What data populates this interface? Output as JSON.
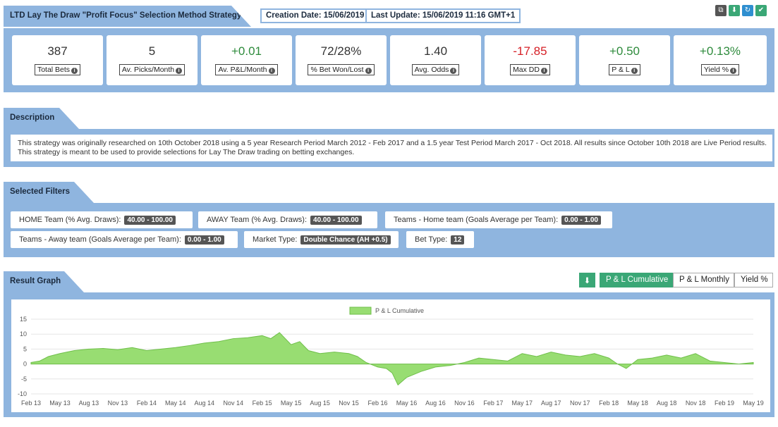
{
  "header": {
    "title": "LTD Lay The Draw \"Profit Focus\" Selection Method Strategy",
    "creation_date": "Creation Date: 15/06/2019",
    "last_update": "Last Update: 15/06/2019 11:16 GMT+1",
    "icons": [
      "copy-icon",
      "download-icon",
      "refresh-icon",
      "follow-check-icon"
    ]
  },
  "stats": [
    {
      "value": "387",
      "label": "Total Bets",
      "tone": "neutral"
    },
    {
      "value": "5",
      "label": "Av. Picks/Month",
      "tone": "neutral"
    },
    {
      "value": "+0.01",
      "label": "Av. P&L/Month",
      "tone": "green"
    },
    {
      "value": "72/28%",
      "label": "% Bet Won/Lost",
      "tone": "neutral"
    },
    {
      "value": "1.40",
      "label": "Avg. Odds",
      "tone": "neutral"
    },
    {
      "value": "-17.85",
      "label": "Max DD",
      "tone": "red"
    },
    {
      "value": "+0.50",
      "label": "P & L",
      "tone": "green"
    },
    {
      "value": "+0.13%",
      "label": "Yield %",
      "tone": "green"
    }
  ],
  "description": {
    "title": "Description",
    "text": "This strategy was originally researched on 10th October 2018 using a 5 year Research Period March 2012 - Feb 2017 and a 1.5 year Test Period March 2017 - Oct 2018. All results since October 10th 2018 are Live Period results. This strategy is meant to be used to provide selections for Lay The Draw trading on betting exchanges."
  },
  "filters": {
    "title": "Selected Filters",
    "items": [
      {
        "label": "HOME Team (% Avg. Draws):",
        "value": "40.00 - 100.00"
      },
      {
        "label": "AWAY Team (% Avg. Draws):",
        "value": "40.00 - 100.00"
      },
      {
        "label": "Teams - Home team (Goals Average per Team):",
        "value": "0.00 - 1.00"
      },
      {
        "label": "Teams - Away team (Goals Average per Team):",
        "value": "0.00 - 1.00"
      },
      {
        "label": "Market Type:",
        "value": "Double Chance (AH +0.5)"
      },
      {
        "label": "Bet Type:",
        "value": "12"
      }
    ]
  },
  "graph": {
    "title": "Result Graph",
    "buttons": [
      "P & L Cumulative",
      "P & L Monthly",
      "Yield %"
    ],
    "active_button": "P & L Cumulative"
  },
  "chart_data": {
    "type": "area",
    "legend": "P & L Cumulative",
    "legend_position": "top-center",
    "color": "#98dd72",
    "grid": true,
    "ylim": [
      -10,
      15
    ],
    "yticks": [
      -10,
      -5,
      0,
      5,
      10,
      15
    ],
    "xticks": [
      "Feb 13",
      "May 13",
      "Aug 13",
      "Nov 13",
      "Feb 14",
      "May 14",
      "Aug 14",
      "Nov 14",
      "Feb 15",
      "May 15",
      "Aug 15",
      "Nov 15",
      "Feb 16",
      "May 16",
      "Aug 16",
      "Nov 16",
      "Feb 17",
      "May 17",
      "Aug 17",
      "Nov 17",
      "Feb 18",
      "May 18",
      "Aug 18",
      "Nov 18",
      "Feb 19",
      "May 19"
    ],
    "series": [
      {
        "x": [
          0,
          0.3,
          0.6,
          1,
          1.5,
          2,
          2.5,
          3,
          3.5,
          4,
          4.5,
          5,
          5.5,
          6,
          6.5,
          7,
          7.5,
          8,
          8.3,
          8.6,
          9,
          9.3,
          9.6,
          10,
          10.5,
          11,
          11.3,
          11.6,
          12,
          12.3,
          12.5,
          12.7,
          13,
          13.5,
          14,
          14.5,
          15,
          15.5,
          16,
          16.5,
          17,
          17.5,
          18,
          18.5,
          19,
          19.5,
          20,
          20.3,
          20.6,
          21,
          21.5,
          22,
          22.5,
          23,
          23.5,
          24,
          24.5,
          25
        ],
        "y": [
          0.5,
          1,
          2.5,
          3.5,
          4.5,
          5,
          5.2,
          4.8,
          5.5,
          4.5,
          5,
          5.5,
          6.2,
          7,
          7.5,
          8.5,
          8.8,
          9.5,
          8.5,
          10.5,
          6.5,
          7.5,
          4.5,
          3.5,
          4,
          3.5,
          2.5,
          0.5,
          -1,
          -1.5,
          -3,
          -7,
          -4.5,
          -2.5,
          -1,
          -0.5,
          0.5,
          2,
          1.5,
          1,
          3.5,
          2.5,
          4,
          3,
          2.5,
          3.5,
          2,
          0,
          -1.5,
          1.5,
          2,
          3,
          2,
          3.5,
          1,
          0.5,
          0,
          0.5
        ]
      }
    ]
  }
}
